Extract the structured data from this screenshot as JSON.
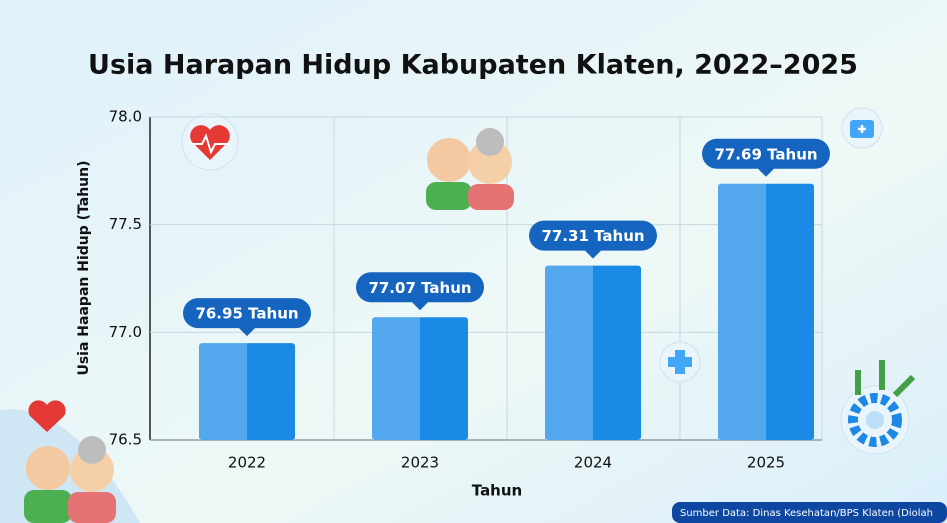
{
  "chart_data": {
    "type": "bar",
    "title": "Usia Harapan Hidup Kabupaten Klaten, 2022–2025",
    "x_label": "Tahun",
    "y_label": "Usia Haapan Hidup (Tahun)",
    "source": "Sumber Data: Dinas Kesehatan/BPS Klaten (Diolah",
    "categories": [
      "2022",
      "2023",
      "2024",
      "2025"
    ],
    "values": [
      76.95,
      77.07,
      77.31,
      77.69
    ],
    "value_labels": [
      "76.95 Tahun",
      "77.07 Tahun",
      "77.31 Tahun",
      "77.69 Tahun"
    ],
    "color": "#1a8ae6",
    "label_color": "#1565c0",
    "ylim": [
      76.5,
      78.0
    ],
    "yticks": [
      76.5,
      {
        "value": 77.0,
        "label": "77.0"
      },
      77.5,
      {
        "value": 78.0,
        "label": "78.0"
      }
    ],
    "grid": true
  }
}
